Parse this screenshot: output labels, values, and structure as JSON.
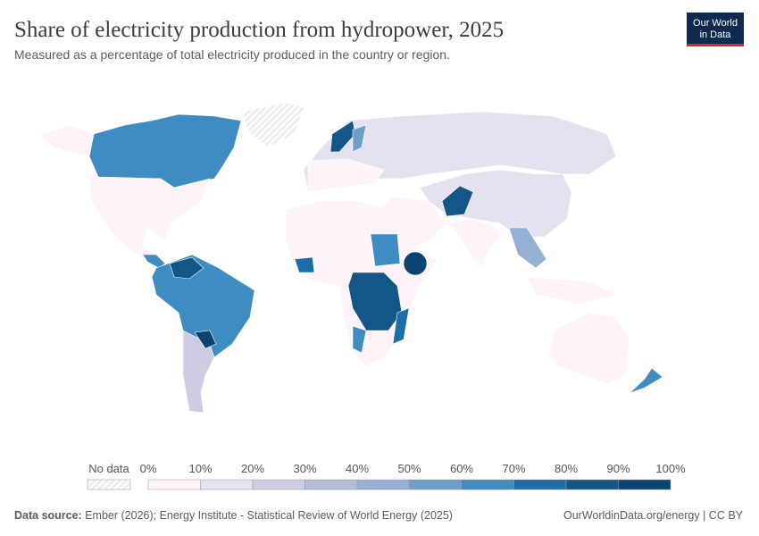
{
  "header": {
    "title": "Share of electricity production from hydropower, 2025",
    "subtitle": "Measured as a percentage of total electricity produced in the country or region.",
    "logo": [
      "Our World",
      "in Data"
    ]
  },
  "legend": {
    "no_data": "No data",
    "labels": [
      "0%",
      "10%",
      "20%",
      "30%",
      "40%",
      "50%",
      "60%",
      "70%",
      "80%",
      "90%",
      "100%"
    ],
    "colors": [
      "#fdf3f8",
      "#e5e2ef",
      "#cdcce3",
      "#b3bdd9",
      "#96b0d3",
      "#6e9fcb",
      "#3f8cc3",
      "#1b6ea8",
      "#135788",
      "#0c4471"
    ]
  },
  "footer": {
    "source_label": "Data source:",
    "source": "Ember (2026); Energy Institute - Statistical Review of World Energy (2025)",
    "link": "OurWorldinData.org/energy | CC BY"
  }
}
